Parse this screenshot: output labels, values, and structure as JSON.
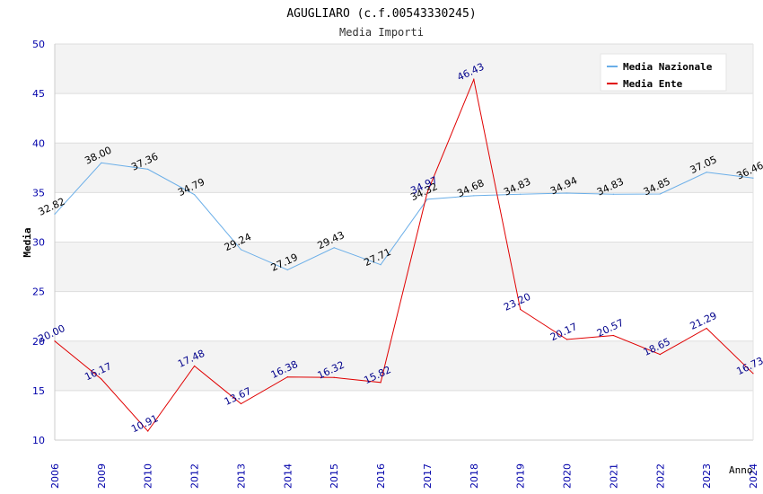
{
  "chart_data": {
    "type": "line",
    "title": "AGUGLIARO (c.f.00543330245)",
    "subtitle": "Media Importi",
    "xlabel": "Anno",
    "ylabel": "Media",
    "ylim": [
      10,
      50
    ],
    "yticks": [
      10,
      15,
      20,
      25,
      30,
      35,
      40,
      45,
      50
    ],
    "categories": [
      "2006",
      "2009",
      "2010",
      "2012",
      "2013",
      "2014",
      "2015",
      "2016",
      "2017",
      "2018",
      "2019",
      "2020",
      "2021",
      "2022",
      "2023",
      "2024"
    ],
    "legend_position": "top-right",
    "grid": true,
    "series": [
      {
        "name": "Media Nazionale",
        "color": "#6aaee8",
        "label_color": "#000000",
        "values": [
          32.82,
          38.0,
          37.36,
          34.79,
          29.24,
          27.19,
          29.43,
          27.71,
          34.32,
          34.68,
          34.83,
          34.94,
          34.83,
          34.85,
          37.05,
          36.46
        ],
        "labels": [
          "32.82",
          "38.00",
          "37.36",
          "34.79",
          "29.24",
          "27.19",
          "29.43",
          "27.71",
          "34.32",
          "34.68",
          "34.83",
          "34.94",
          "34.83",
          "34.85",
          "37.05",
          "36.46"
        ]
      },
      {
        "name": "Media Ente",
        "color": "#e00000",
        "label_color": "#00008b",
        "values": [
          20.0,
          16.17,
          10.91,
          17.48,
          13.67,
          16.38,
          16.32,
          15.82,
          34.97,
          46.43,
          23.2,
          20.17,
          20.57,
          18.65,
          21.29,
          16.73
        ],
        "labels": [
          "20.00",
          "16.17",
          "10.91",
          "17.48",
          "13.67",
          "16.38",
          "16.32",
          "15.82",
          "34.97",
          "46.43",
          "23.20",
          "20.17",
          "20.57",
          "18.65",
          "21.29",
          "16.73"
        ]
      }
    ]
  }
}
